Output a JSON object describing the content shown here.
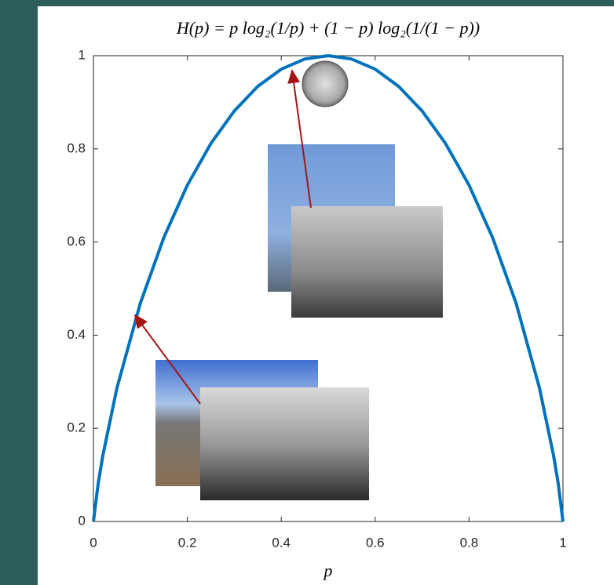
{
  "chart_data": {
    "type": "line",
    "title": "H(p) = p log₂(1/p) + (1 − p) log₂(1/(1 − p))",
    "x_label": "p",
    "x": [
      0,
      0.01,
      0.02,
      0.05,
      0.1,
      0.15,
      0.2,
      0.25,
      0.3,
      0.35,
      0.4,
      0.45,
      0.5,
      0.55,
      0.6,
      0.65,
      0.7,
      0.75,
      0.8,
      0.85,
      0.9,
      0.95,
      0.98,
      0.99,
      1
    ],
    "series": [
      {
        "color": "#0072bd",
        "values": [
          0,
          0.0808,
          0.1414,
          0.2864,
          0.469,
          0.6098,
          0.7219,
          0.8113,
          0.8813,
          0.9341,
          0.971,
          0.9928,
          1,
          0.9928,
          0.971,
          0.9341,
          0.8813,
          0.8113,
          0.7219,
          0.6098,
          0.469,
          0.2864,
          0.1414,
          0.0808,
          0
        ]
      }
    ],
    "xlim": [
      0,
      1
    ],
    "ylim": [
      0,
      1
    ],
    "xticks": [
      0,
      0.2,
      0.4,
      0.6,
      0.8,
      1
    ],
    "yticks": [
      0,
      0.2,
      0.4,
      0.6,
      0.8,
      1
    ]
  }
}
